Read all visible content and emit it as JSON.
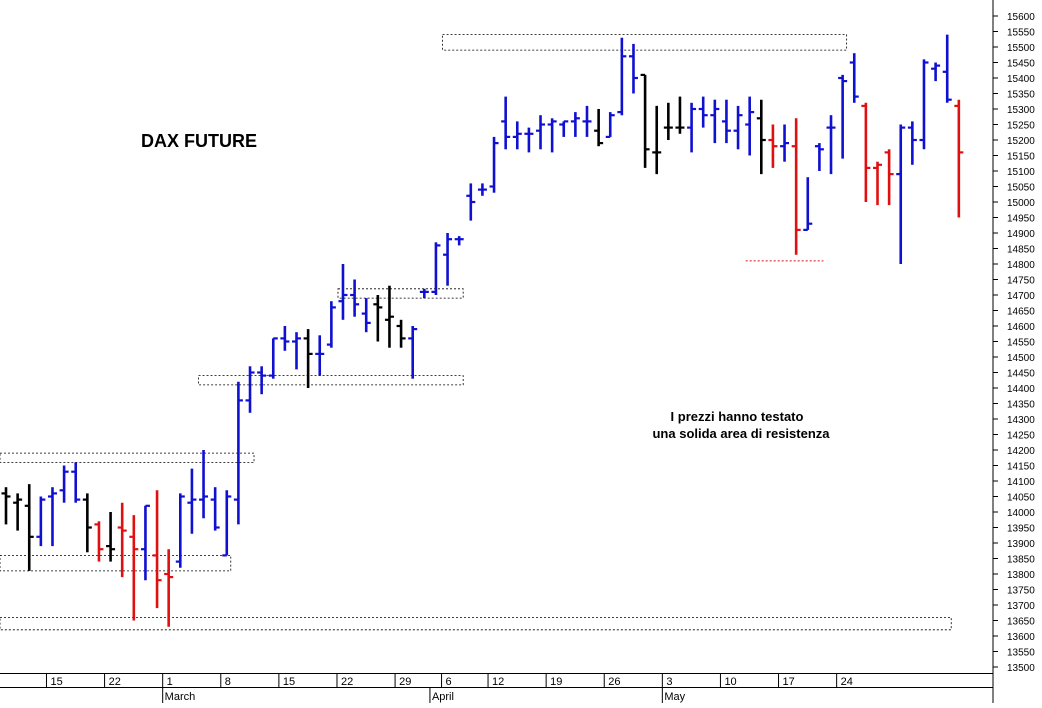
{
  "chart_data": {
    "type": "ohlc",
    "title": "DAX FUTURE",
    "annotation": [
      "I prezzi hanno testato",
      "una solida area di resistenza"
    ],
    "ylim": [
      13450,
      15660
    ],
    "y_ticks": [
      13500,
      13550,
      13600,
      13650,
      13700,
      13750,
      13800,
      13850,
      13900,
      13950,
      14000,
      14050,
      14100,
      14150,
      14200,
      14250,
      14300,
      14350,
      14400,
      14450,
      14500,
      14550,
      14600,
      14650,
      14700,
      14750,
      14800,
      14850,
      14900,
      14950,
      15000,
      15050,
      15100,
      15150,
      15200,
      15250,
      15300,
      15350,
      15400,
      15450,
      15500,
      15550,
      15600
    ],
    "x_ticks": [
      {
        "label": "15",
        "session": 4
      },
      {
        "label": "22",
        "session": 9
      },
      {
        "label": "1",
        "session": 14
      },
      {
        "label": "8",
        "session": 19
      },
      {
        "label": "15",
        "session": 24
      },
      {
        "label": "22",
        "session": 29
      },
      {
        "label": "29",
        "session": 34
      },
      {
        "label": "6",
        "session": 38
      },
      {
        "label": "12",
        "session": 42
      },
      {
        "label": "19",
        "session": 47
      },
      {
        "label": "26",
        "session": 52
      },
      {
        "label": "3",
        "session": 57
      },
      {
        "label": "10",
        "session": 62
      },
      {
        "label": "17",
        "session": 67
      },
      {
        "label": "24",
        "session": 72
      }
    ],
    "month_labels": [
      {
        "label": "March",
        "session": 14
      },
      {
        "label": "April",
        "session": 37
      },
      {
        "label": "May",
        "session": 57
      }
    ],
    "colors": {
      "up": "#1010d0",
      "down": "#e01010",
      "neutral": "#000000"
    },
    "bars": [
      {
        "o": 14060,
        "h": 14080,
        "l": 13960,
        "c": 14050,
        "color": "neutral"
      },
      {
        "o": 14030,
        "h": 14060,
        "l": 13940,
        "c": 14040,
        "color": "neutral"
      },
      {
        "o": 14020,
        "h": 14090,
        "l": 13810,
        "c": 13920,
        "color": "neutral"
      },
      {
        "o": 13920,
        "h": 14050,
        "l": 13890,
        "c": 14040,
        "color": "up"
      },
      {
        "o": 14050,
        "h": 14080,
        "l": 13890,
        "c": 14060,
        "color": "up"
      },
      {
        "o": 14070,
        "h": 14150,
        "l": 14030,
        "c": 14130,
        "color": "up"
      },
      {
        "o": 14130,
        "h": 14160,
        "l": 14030,
        "c": 14040,
        "color": "up"
      },
      {
        "o": 14040,
        "h": 14060,
        "l": 13870,
        "c": 13950,
        "color": "neutral"
      },
      {
        "o": 13960,
        "h": 13970,
        "l": 13840,
        "c": 13880,
        "color": "down"
      },
      {
        "o": 13890,
        "h": 14000,
        "l": 13840,
        "c": 13880,
        "color": "neutral"
      },
      {
        "o": 13950,
        "h": 14030,
        "l": 13790,
        "c": 13940,
        "color": "down"
      },
      {
        "o": 13920,
        "h": 13990,
        "l": 13650,
        "c": 13880,
        "color": "down"
      },
      {
        "o": 13880,
        "h": 14020,
        "l": 13780,
        "c": 14020,
        "color": "up"
      },
      {
        "o": 13860,
        "h": 14070,
        "l": 13690,
        "c": 13780,
        "color": "down"
      },
      {
        "o": 13800,
        "h": 13880,
        "l": 13630,
        "c": 13790,
        "color": "down"
      },
      {
        "o": 13840,
        "h": 14060,
        "l": 13820,
        "c": 14050,
        "color": "up"
      },
      {
        "o": 14030,
        "h": 14140,
        "l": 13930,
        "c": 14040,
        "color": "up"
      },
      {
        "o": 14040,
        "h": 14200,
        "l": 13980,
        "c": 14050,
        "color": "up"
      },
      {
        "o": 14040,
        "h": 14080,
        "l": 13940,
        "c": 13950,
        "color": "up"
      },
      {
        "o": 13860,
        "h": 14070,
        "l": 13860,
        "c": 14050,
        "color": "up"
      },
      {
        "o": 14040,
        "h": 14420,
        "l": 13960,
        "c": 14360,
        "color": "up"
      },
      {
        "o": 14360,
        "h": 14470,
        "l": 14320,
        "c": 14450,
        "color": "up"
      },
      {
        "o": 14450,
        "h": 14470,
        "l": 14380,
        "c": 14440,
        "color": "up"
      },
      {
        "o": 14440,
        "h": 14560,
        "l": 14430,
        "c": 14560,
        "color": "up"
      },
      {
        "o": 14560,
        "h": 14600,
        "l": 14520,
        "c": 14550,
        "color": "up"
      },
      {
        "o": 14550,
        "h": 14580,
        "l": 14460,
        "c": 14560,
        "color": "up"
      },
      {
        "o": 14560,
        "h": 14590,
        "l": 14400,
        "c": 14510,
        "color": "neutral"
      },
      {
        "o": 14510,
        "h": 14570,
        "l": 14440,
        "c": 14510,
        "color": "up"
      },
      {
        "o": 14540,
        "h": 14680,
        "l": 14530,
        "c": 14660,
        "color": "up"
      },
      {
        "o": 14680,
        "h": 14800,
        "l": 14620,
        "c": 14700,
        "color": "up"
      },
      {
        "o": 14700,
        "h": 14750,
        "l": 14630,
        "c": 14670,
        "color": "up"
      },
      {
        "o": 14640,
        "h": 14690,
        "l": 14580,
        "c": 14610,
        "color": "up"
      },
      {
        "o": 14670,
        "h": 14700,
        "l": 14550,
        "c": 14660,
        "color": "neutral"
      },
      {
        "o": 14620,
        "h": 14730,
        "l": 14530,
        "c": 14630,
        "color": "neutral"
      },
      {
        "o": 14600,
        "h": 14620,
        "l": 14530,
        "c": 14560,
        "color": "neutral"
      },
      {
        "o": 14560,
        "h": 14600,
        "l": 14430,
        "c": 14590,
        "color": "up"
      },
      {
        "o": 14710,
        "h": 14720,
        "l": 14690,
        "c": 14710,
        "color": "up"
      },
      {
        "o": 14710,
        "h": 14870,
        "l": 14700,
        "c": 14860,
        "color": "up"
      },
      {
        "o": 14830,
        "h": 14900,
        "l": 14730,
        "c": 14880,
        "color": "up"
      },
      {
        "o": 14880,
        "h": 14890,
        "l": 14860,
        "c": 14880,
        "color": "up"
      },
      {
        "o": 15020,
        "h": 15060,
        "l": 14940,
        "c": 15000,
        "color": "up"
      },
      {
        "o": 15040,
        "h": 15060,
        "l": 15020,
        "c": 15040,
        "color": "up"
      },
      {
        "o": 15050,
        "h": 15210,
        "l": 15030,
        "c": 15190,
        "color": "up"
      },
      {
        "o": 15260,
        "h": 15340,
        "l": 15170,
        "c": 15210,
        "color": "up"
      },
      {
        "o": 15210,
        "h": 15260,
        "l": 15170,
        "c": 15220,
        "color": "up"
      },
      {
        "o": 15220,
        "h": 15240,
        "l": 15160,
        "c": 15220,
        "color": "up"
      },
      {
        "o": 15230,
        "h": 15280,
        "l": 15170,
        "c": 15250,
        "color": "up"
      },
      {
        "o": 15250,
        "h": 15270,
        "l": 15160,
        "c": 15260,
        "color": "up"
      },
      {
        "o": 15250,
        "h": 15260,
        "l": 15210,
        "c": 15260,
        "color": "up"
      },
      {
        "o": 15260,
        "h": 15290,
        "l": 15210,
        "c": 15270,
        "color": "up"
      },
      {
        "o": 15260,
        "h": 15310,
        "l": 15210,
        "c": 15260,
        "color": "up"
      },
      {
        "o": 15230,
        "h": 15300,
        "l": 15180,
        "c": 15190,
        "color": "neutral"
      },
      {
        "o": 15210,
        "h": 15290,
        "l": 15210,
        "c": 15280,
        "color": "up"
      },
      {
        "o": 15290,
        "h": 15530,
        "l": 15280,
        "c": 15470,
        "color": "up"
      },
      {
        "o": 15470,
        "h": 15510,
        "l": 15350,
        "c": 15400,
        "color": "up"
      },
      {
        "o": 15410,
        "h": 15410,
        "l": 15110,
        "c": 15170,
        "color": "neutral"
      },
      {
        "o": 15160,
        "h": 15310,
        "l": 15090,
        "c": 15160,
        "color": "neutral"
      },
      {
        "o": 15240,
        "h": 15320,
        "l": 15200,
        "c": 15240,
        "color": "neutral"
      },
      {
        "o": 15240,
        "h": 15340,
        "l": 15220,
        "c": 15240,
        "color": "neutral"
      },
      {
        "o": 15240,
        "h": 15320,
        "l": 15160,
        "c": 15300,
        "color": "up"
      },
      {
        "o": 15300,
        "h": 15340,
        "l": 15240,
        "c": 15280,
        "color": "up"
      },
      {
        "o": 15280,
        "h": 15330,
        "l": 15190,
        "c": 15300,
        "color": "up"
      },
      {
        "o": 15260,
        "h": 15330,
        "l": 15190,
        "c": 15230,
        "color": "up"
      },
      {
        "o": 15230,
        "h": 15310,
        "l": 15170,
        "c": 15280,
        "color": "up"
      },
      {
        "o": 15250,
        "h": 15340,
        "l": 15150,
        "c": 15290,
        "color": "up"
      },
      {
        "o": 15270,
        "h": 15330,
        "l": 15090,
        "c": 15200,
        "color": "neutral"
      },
      {
        "o": 15200,
        "h": 15250,
        "l": 15110,
        "c": 15180,
        "color": "down"
      },
      {
        "o": 15180,
        "h": 15250,
        "l": 15130,
        "c": 15190,
        "color": "up"
      },
      {
        "o": 15180,
        "h": 15270,
        "l": 14830,
        "c": 14910,
        "color": "down"
      },
      {
        "o": 14910,
        "h": 15080,
        "l": 14910,
        "c": 14930,
        "color": "up"
      },
      {
        "o": 15180,
        "h": 15190,
        "l": 15100,
        "c": 15170,
        "color": "up"
      },
      {
        "o": 15240,
        "h": 15280,
        "l": 15090,
        "c": 15240,
        "color": "up"
      },
      {
        "o": 15400,
        "h": 15410,
        "l": 15140,
        "c": 15390,
        "color": "up"
      },
      {
        "o": 15450,
        "h": 15480,
        "l": 15320,
        "c": 15340,
        "color": "up"
      },
      {
        "o": 15310,
        "h": 15320,
        "l": 15000,
        "c": 15110,
        "color": "down"
      },
      {
        "o": 15110,
        "h": 15130,
        "l": 14990,
        "c": 15120,
        "color": "down"
      },
      {
        "o": 15160,
        "h": 15170,
        "l": 14990,
        "c": 15090,
        "color": "down"
      },
      {
        "o": 15090,
        "h": 15250,
        "l": 14800,
        "c": 15240,
        "color": "up"
      },
      {
        "o": 15240,
        "h": 15260,
        "l": 15120,
        "c": 15200,
        "color": "up"
      },
      {
        "o": 15200,
        "h": 15460,
        "l": 15170,
        "c": 15450,
        "color": "up"
      },
      {
        "o": 15430,
        "h": 15450,
        "l": 15390,
        "c": 15440,
        "color": "up"
      },
      {
        "o": 15420,
        "h": 15540,
        "l": 15320,
        "c": 15330,
        "color": "up"
      },
      {
        "o": 15310,
        "h": 15330,
        "l": 14950,
        "c": 15160,
        "color": "down"
      }
    ],
    "resistance_zones": [
      {
        "low": 15490,
        "high": 15540,
        "from": 38,
        "to": 72
      },
      {
        "low": 14690,
        "high": 14720,
        "from": 29,
        "to": 39
      },
      {
        "low": 14410,
        "high": 14440,
        "from": 17,
        "to": 39
      },
      {
        "low": 14160,
        "high": 14190,
        "from": -1,
        "to": 21
      },
      {
        "low": 13810,
        "high": 13860,
        "from": -1,
        "to": 19
      },
      {
        "low": 13620,
        "high": 13660,
        "from": -1,
        "to": 81
      }
    ],
    "support_line": {
      "value": 14810,
      "from": 64,
      "to": 70
    }
  }
}
